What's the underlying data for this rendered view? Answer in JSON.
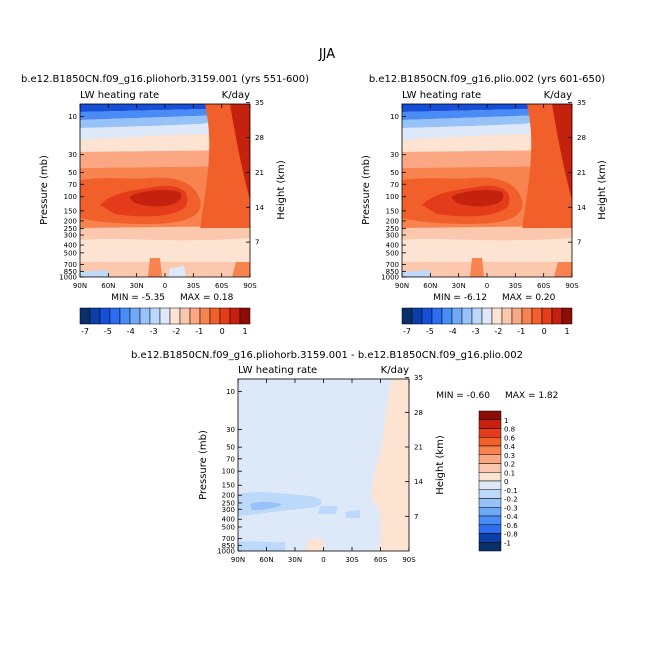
{
  "figure_title": "JJA",
  "chart_data": [
    {
      "type": "heatmap",
      "title": "b.e12.B1850CN.f09_g16.pliohorb.3159.001 (yrs 551-600)",
      "variable": "LW heating rate",
      "units": "K/day",
      "ylabel": "Pressure (mb)",
      "ylabel_right": "Height (km)",
      "x_ticks": [
        "90N",
        "60N",
        "30N",
        "0",
        "30S",
        "60S",
        "90S"
      ],
      "y_ticks": [
        "10",
        "30",
        "50",
        "70",
        "100",
        "150",
        "200",
        "250",
        "300",
        "400",
        "500",
        "700",
        "850",
        "1000"
      ],
      "y_ticks_right": [
        "35",
        "28",
        "21",
        "14",
        "7"
      ],
      "min_label": "MIN = -5.35",
      "max_label": "MAX = 0.18",
      "min": -5.35,
      "max": 0.18
    },
    {
      "type": "heatmap",
      "title": "b.e12.B1850CN.f09_g16.plio.002 (yrs 601-650)",
      "variable": "LW heating rate",
      "units": "K/day",
      "ylabel": "Pressure (mb)",
      "ylabel_right": "Height (km)",
      "x_ticks": [
        "90N",
        "60N",
        "30N",
        "0",
        "30S",
        "60S",
        "90S"
      ],
      "y_ticks": [
        "10",
        "30",
        "50",
        "70",
        "100",
        "150",
        "200",
        "250",
        "300",
        "400",
        "500",
        "700",
        "850",
        "1000"
      ],
      "y_ticks_right": [
        "35",
        "28",
        "21",
        "14",
        "7"
      ],
      "min_label": "MIN = -6.12",
      "max_label": "MAX = 0.20",
      "min": -6.12,
      "max": 0.2
    },
    {
      "type": "heatmap",
      "title": "b.e12.B1850CN.f09_g16.pliohorb.3159.001 - b.e12.B1850CN.f09_g16.plio.002",
      "variable": "LW heating rate",
      "units": "K/day",
      "ylabel": "Pressure (mb)",
      "ylabel_right": "Height (km)",
      "x_ticks": [
        "90N",
        "60N",
        "30N",
        "0",
        "30S",
        "60S",
        "90S"
      ],
      "y_ticks": [
        "10",
        "30",
        "50",
        "70",
        "100",
        "150",
        "200",
        "250",
        "300",
        "400",
        "500",
        "700",
        "850",
        "1000"
      ],
      "y_ticks_right": [
        "35",
        "28",
        "21",
        "14",
        "7"
      ],
      "min_label": "MIN = -0.60",
      "max_label": "MAX = 1.82",
      "min": -0.6,
      "max": 1.82
    }
  ],
  "colorbar_top": {
    "labels": [
      "-7",
      "-5",
      "-4",
      "-3",
      "-2",
      "-1",
      "0",
      "1"
    ],
    "colors": [
      "#08306b",
      "#0a3fa8",
      "#1750d8",
      "#2b6ff0",
      "#4a8cf5",
      "#6fa8f7",
      "#96c2f8",
      "#bcd8fa",
      "#dde9f8",
      "#fde3d2",
      "#fcc8ad",
      "#fba783",
      "#f7834f",
      "#f15f2b",
      "#e43c1a",
      "#c5210f",
      "#8c0d06"
    ]
  },
  "colorbar_diff": {
    "labels": [
      "1",
      "0.8",
      "0.6",
      "0.4",
      "0.3",
      "0.2",
      "0.1",
      "0",
      "-0.1",
      "-0.2",
      "-0.3",
      "-0.4",
      "-0.6",
      "-0.8",
      "-1"
    ],
    "colors": [
      "#8c0d06",
      "#c5210f",
      "#e43c1a",
      "#f15f2b",
      "#f7834f",
      "#fba783",
      "#fcc8ad",
      "#fde3d2",
      "#dde9f8",
      "#bcd8fa",
      "#96c2f8",
      "#6fa8f7",
      "#4a8cf5",
      "#2b6ff0",
      "#0a3fa8",
      "#08306b"
    ]
  }
}
